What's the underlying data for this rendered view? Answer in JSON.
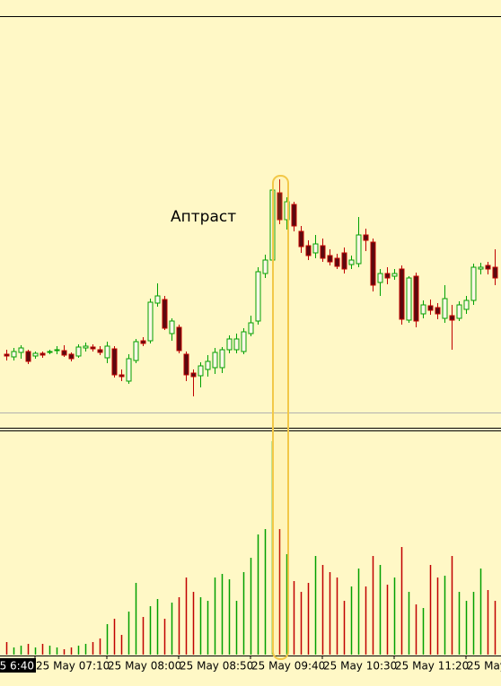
{
  "chart_data": {
    "type": "candlestick",
    "annotation": "Аптраст",
    "cursor_label": "5 6:40",
    "ylim": [
      0,
      442
    ],
    "volume_ylim": [
      0,
      250
    ],
    "up_color": "#00a000",
    "down_color": "#c00000",
    "down_body_color": "#5a0a10",
    "xticks": [
      {
        "value": 4,
        "label": "25 May 07:10"
      },
      {
        "value": 14,
        "label": "25 May 08:00"
      },
      {
        "value": 24,
        "label": "25 May 08:50"
      },
      {
        "value": 34,
        "label": "25 May 09:40"
      },
      {
        "value": 44,
        "label": "25 May 10:30"
      },
      {
        "value": 54,
        "label": "25 May 11:20"
      },
      {
        "value": 64,
        "label": "25 May"
      }
    ],
    "open": [
      65,
      62,
      67,
      68,
      63,
      66,
      67,
      69,
      69,
      65,
      63,
      72,
      73,
      70,
      61,
      71,
      42,
      35,
      58,
      80,
      80,
      122,
      126,
      88,
      95,
      65,
      44,
      41,
      48,
      50,
      50,
      70,
      70,
      68,
      88,
      102,
      155,
      170,
      245,
      215,
      232,
      202,
      186,
      178,
      186,
      175,
      172,
      178,
      165,
      166,
      198,
      190,
      145,
      155,
      152,
      160,
      103,
      152,
      110,
      119,
      117,
      105,
      108,
      105,
      115,
      125,
      160,
      164,
      162
    ],
    "close": [
      63,
      68,
      72,
      57,
      66,
      64,
      68,
      70,
      64,
      60,
      73,
      74,
      71,
      67,
      74,
      42,
      40,
      60,
      79,
      77,
      123,
      130,
      94,
      102,
      69,
      42,
      40,
      52,
      57,
      67,
      70,
      82,
      82,
      90,
      100,
      157,
      170,
      248,
      215,
      235,
      208,
      185,
      175,
      188,
      172,
      168,
      163,
      160,
      170,
      198,
      192,
      142,
      155,
      150,
      155,
      104,
      150,
      102,
      120,
      114,
      110,
      127,
      103,
      120,
      125,
      162,
      162,
      160,
      150
    ],
    "high": [
      70,
      72,
      75,
      70,
      68,
      68,
      70,
      74,
      75,
      67,
      76,
      78,
      76,
      74,
      79,
      74,
      48,
      65,
      82,
      84,
      127,
      144,
      130,
      105,
      98,
      68,
      48,
      56,
      64,
      72,
      73,
      86,
      88,
      94,
      108,
      162,
      176,
      252,
      260,
      240,
      235,
      208,
      192,
      198,
      194,
      182,
      177,
      184,
      175,
      218,
      205,
      194,
      160,
      162,
      160,
      164,
      152,
      156,
      125,
      126,
      122,
      142,
      120,
      124,
      130,
      166,
      167,
      168,
      182
    ],
    "low": [
      58,
      58,
      60,
      54,
      60,
      61,
      65,
      65,
      62,
      57,
      61,
      68,
      68,
      64,
      55,
      39,
      35,
      32,
      55,
      74,
      77,
      118,
      92,
      80,
      66,
      35,
      18,
      28,
      40,
      43,
      44,
      66,
      66,
      65,
      85,
      98,
      150,
      168,
      210,
      204,
      202,
      178,
      170,
      172,
      168,
      164,
      160,
      155,
      160,
      162,
      180,
      135,
      130,
      143,
      148,
      98,
      100,
      95,
      105,
      109,
      104,
      100,
      70,
      102,
      110,
      120,
      154,
      154,
      142
    ],
    "volume": [
      14,
      8,
      10,
      12,
      8,
      12,
      10,
      8,
      6,
      8,
      10,
      12,
      14,
      18,
      34,
      40,
      22,
      48,
      80,
      42,
      54,
      62,
      40,
      58,
      64,
      86,
      70,
      64,
      60,
      86,
      90,
      84,
      60,
      92,
      108,
      134,
      140,
      238,
      140,
      112,
      82,
      70,
      80,
      110,
      100,
      92,
      86,
      60,
      76,
      96,
      76,
      110,
      100,
      78,
      86,
      120,
      70,
      56,
      52,
      100,
      86,
      88,
      110,
      70,
      60,
      70,
      96,
      72,
      60
    ]
  }
}
